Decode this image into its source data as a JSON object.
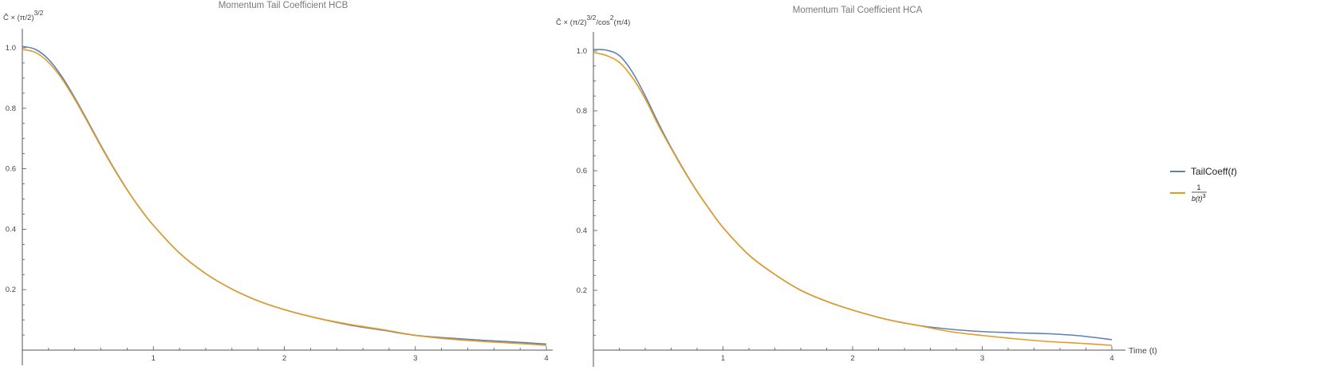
{
  "colors": {
    "series1": "#5e81b5",
    "series2": "#e19c24",
    "axis": "#555555"
  },
  "legend": {
    "placement": "right",
    "items": [
      {
        "name_parts": [
          "TailCoeff(",
          "t",
          ")"
        ],
        "color": "#5e81b5"
      },
      {
        "fraction": {
          "numerator": "1",
          "denominator": "b(t)",
          "power": "3"
        },
        "color": "#e19c24"
      }
    ]
  },
  "chart_data": [
    {
      "type": "line",
      "title": "Momentum Tail Coefficient HCB",
      "ylabel": {
        "base": "C̃ × (π/2)",
        "sup": "3/2"
      },
      "xlabel": "",
      "xlim": [
        0,
        4
      ],
      "ylim": [
        0,
        1.05
      ],
      "xticks": [
        "1",
        "2",
        "3",
        "4"
      ],
      "yticks": [
        "0.2",
        "0.4",
        "0.6",
        "0.8",
        "1.0"
      ],
      "grid": false,
      "x": [
        0,
        0.1,
        0.2,
        0.3,
        0.4,
        0.5,
        0.6,
        0.7,
        0.8,
        0.9,
        1.0,
        1.2,
        1.4,
        1.6,
        1.8,
        2.0,
        2.25,
        2.5,
        2.75,
        3.0,
        3.25,
        3.5,
        3.75,
        4.0
      ],
      "series": [
        {
          "values": [
            1.005,
            0.995,
            0.962,
            0.906,
            0.835,
            0.757,
            0.677,
            0.601,
            0.531,
            0.468,
            0.413,
            0.321,
            0.253,
            0.202,
            0.163,
            0.134,
            0.106,
            0.083,
            0.066,
            0.049,
            0.04,
            0.033,
            0.027,
            0.02
          ]
        },
        {
          "values": [
            0.995,
            0.985,
            0.952,
            0.899,
            0.83,
            0.753,
            0.674,
            0.599,
            0.53,
            0.468,
            0.413,
            0.321,
            0.253,
            0.202,
            0.163,
            0.134,
            0.106,
            0.085,
            0.068,
            0.049,
            0.037,
            0.029,
            0.023,
            0.016
          ]
        }
      ]
    },
    {
      "type": "line",
      "title": "Momentum Tail Coefficient HCA",
      "ylabel": {
        "base": "C̃ × (π/2)",
        "sup1": "3/2",
        "mid": "/cos",
        "sup2": "2",
        "tail": "(π/4)"
      },
      "xlabel": "Time (t)",
      "xlim": [
        0,
        4
      ],
      "ylim": [
        0,
        1.05
      ],
      "xticks": [
        "1",
        "2",
        "3",
        "4"
      ],
      "yticks": [
        "0.2",
        "0.4",
        "0.6",
        "0.8",
        "1.0"
      ],
      "grid": false,
      "x": [
        0,
        0.1,
        0.2,
        0.3,
        0.4,
        0.5,
        0.6,
        0.7,
        0.8,
        0.9,
        1.0,
        1.2,
        1.4,
        1.6,
        1.8,
        2.0,
        2.25,
        2.5,
        2.75,
        3.0,
        3.25,
        3.5,
        3.75,
        4.0
      ],
      "series": [
        {
          "values": [
            1.005,
            1.003,
            0.985,
            0.93,
            0.85,
            0.76,
            0.677,
            0.601,
            0.531,
            0.468,
            0.41,
            0.318,
            0.253,
            0.2,
            0.163,
            0.134,
            0.104,
            0.083,
            0.07,
            0.062,
            0.058,
            0.055,
            0.048,
            0.035
          ]
        },
        {
          "values": [
            0.995,
            0.985,
            0.962,
            0.912,
            0.84,
            0.753,
            0.674,
            0.599,
            0.53,
            0.468,
            0.41,
            0.318,
            0.253,
            0.2,
            0.163,
            0.134,
            0.104,
            0.083,
            0.062,
            0.049,
            0.038,
            0.029,
            0.023,
            0.016
          ]
        }
      ]
    }
  ]
}
